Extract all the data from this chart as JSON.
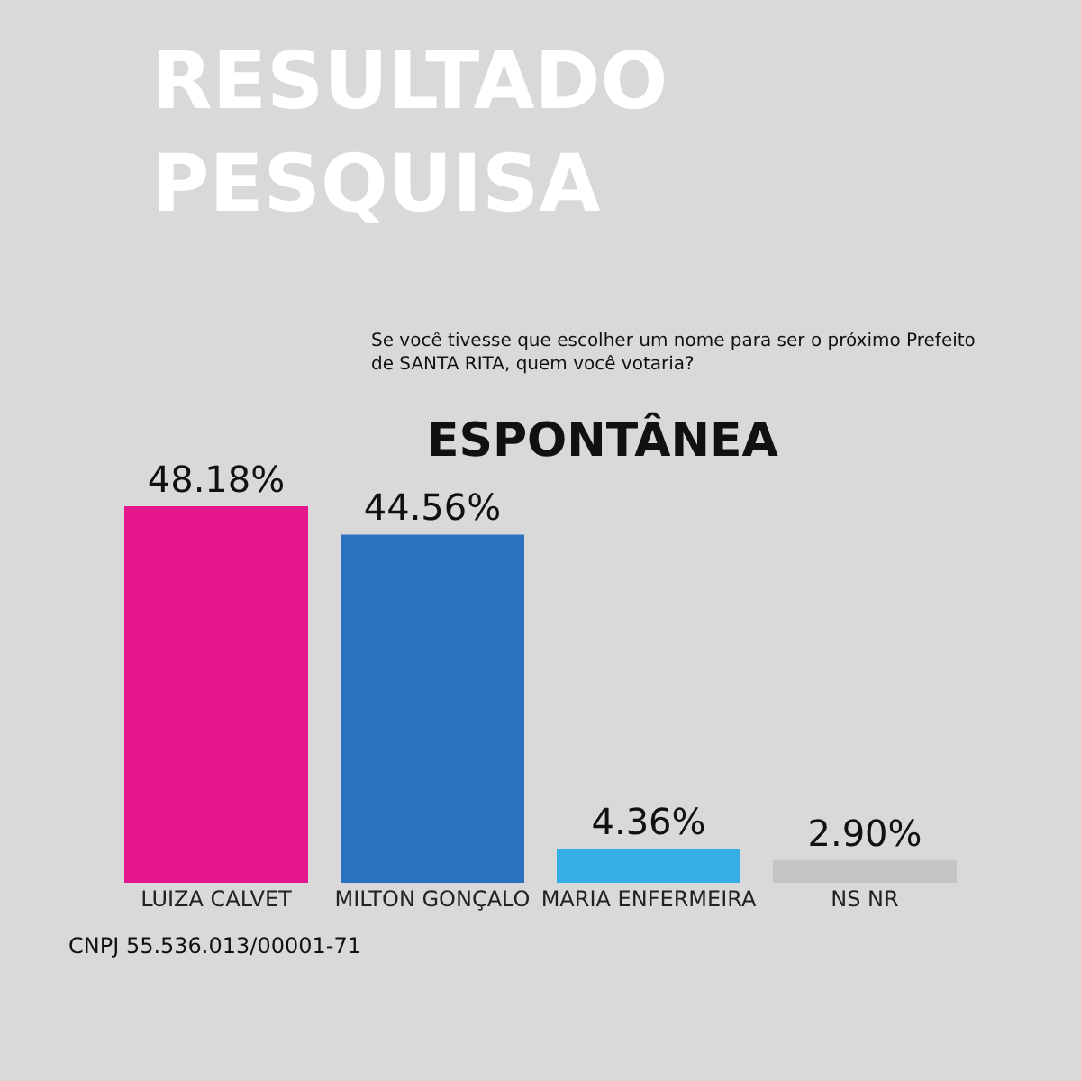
{
  "chart_data": {
    "type": "bar",
    "title": "RESULTADO PESQUISA",
    "subtitle": "Se você tivesse que escolher um nome para ser o próximo Prefeito de SANTA RITA, quem você votaria?",
    "categories": [
      "LUIZA CALVET",
      "MILTON GONÇALO",
      "MARIA ENFERMEIRA",
      "NS NR"
    ],
    "values": [
      48.18,
      44.56,
      4.36,
      2.9
    ],
    "colors": [
      "#e5158c",
      "#2b72c0",
      "#35aee6",
      "#c4c4c4"
    ],
    "value_labels": [
      "48.18%",
      "44.56%",
      "4.36%",
      "2.90%"
    ],
    "tick_labels": "x",
    "legend": false,
    "annotations": [
      "ESPONTÂNEA",
      "CNPJ 55.536.013/00001-71"
    ]
  }
}
